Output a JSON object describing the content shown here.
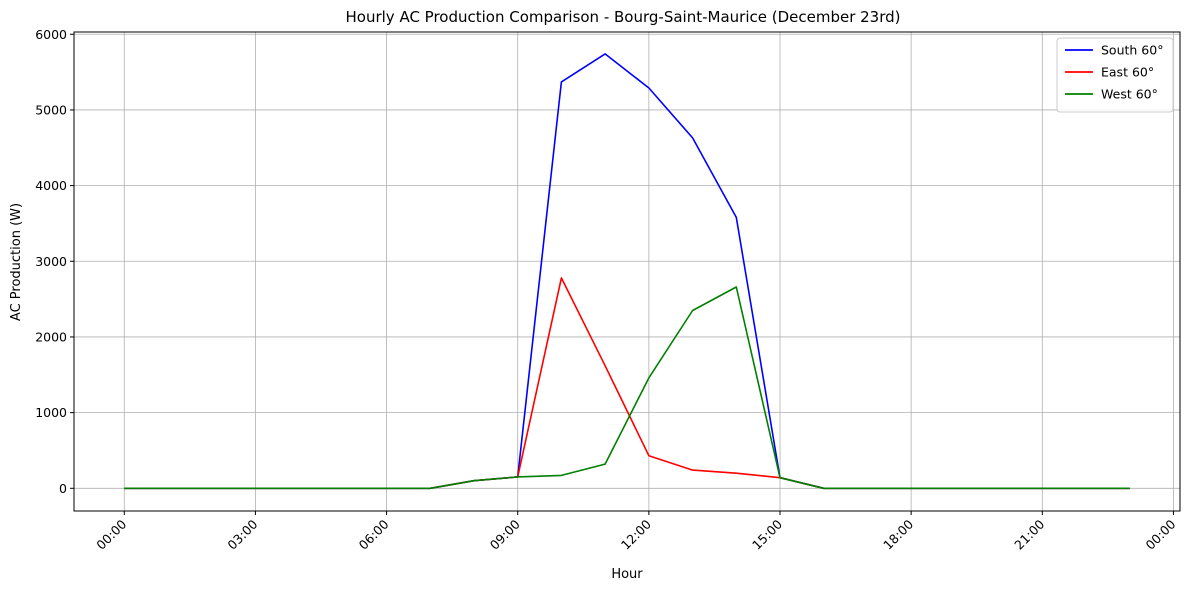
{
  "chart_data": {
    "type": "line",
    "title": "Hourly AC Production Comparison - Bourg-Saint-Maurice (December 23rd)",
    "xlabel": "Hour",
    "ylabel": "AC Production (W)",
    "x": [
      0,
      1,
      2,
      3,
      4,
      5,
      6,
      7,
      8,
      9,
      10,
      11,
      12,
      13,
      14,
      15,
      16,
      17,
      18,
      19,
      20,
      21,
      22,
      23
    ],
    "xlim": [
      -1.15,
      24.15
    ],
    "ylim": [
      -300,
      6030
    ],
    "x_ticks": [
      0,
      3,
      6,
      9,
      12,
      15,
      18,
      21,
      24
    ],
    "x_tick_labels": [
      "00:00",
      "03:00",
      "06:00",
      "09:00",
      "12:00",
      "15:00",
      "18:00",
      "21:00",
      "00:00"
    ],
    "y_ticks": [
      0,
      1000,
      2000,
      3000,
      4000,
      5000,
      6000
    ],
    "y_tick_labels": [
      "0",
      "1000",
      "2000",
      "3000",
      "4000",
      "5000",
      "6000"
    ],
    "grid": true,
    "legend_position": "top-right",
    "series": [
      {
        "name": "South 60°",
        "color": "#0000ff",
        "values": [
          0,
          0,
          0,
          0,
          0,
          0,
          0,
          0,
          100,
          150,
          5370,
          5740,
          5290,
          4630,
          3580,
          140,
          0,
          0,
          0,
          0,
          0,
          0,
          0,
          0
        ]
      },
      {
        "name": "East 60°",
        "color": "#ff0000",
        "values": [
          0,
          0,
          0,
          0,
          0,
          0,
          0,
          0,
          100,
          150,
          2780,
          1620,
          430,
          240,
          200,
          140,
          0,
          0,
          0,
          0,
          0,
          0,
          0,
          0
        ]
      },
      {
        "name": "West 60°",
        "color": "#008000",
        "values": [
          0,
          0,
          0,
          0,
          0,
          0,
          0,
          0,
          100,
          150,
          170,
          320,
          1460,
          2350,
          2660,
          140,
          0,
          0,
          0,
          0,
          0,
          0,
          0,
          0
        ]
      }
    ]
  }
}
